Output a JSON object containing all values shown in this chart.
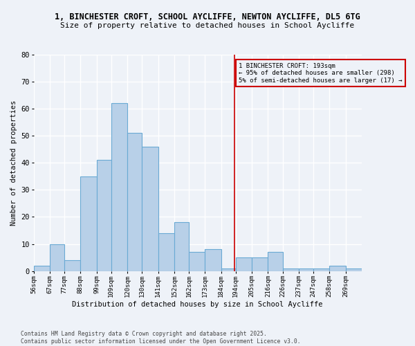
{
  "title_line1": "1, BINCHESTER CROFT, SCHOOL AYCLIFFE, NEWTON AYCLIFFE, DL5 6TG",
  "title_line2": "Size of property relative to detached houses in School Aycliffe",
  "xlabel": "Distribution of detached houses by size in School Aycliffe",
  "ylabel": "Number of detached properties",
  "bin_labels": [
    "56sqm",
    "67sqm",
    "77sqm",
    "88sqm",
    "99sqm",
    "109sqm",
    "120sqm",
    "130sqm",
    "141sqm",
    "152sqm",
    "162sqm",
    "173sqm",
    "184sqm",
    "194sqm",
    "205sqm",
    "216sqm",
    "226sqm",
    "237sqm",
    "247sqm",
    "258sqm",
    "269sqm"
  ],
  "bin_edges": [
    56,
    67,
    77,
    88,
    99,
    109,
    120,
    130,
    141,
    152,
    162,
    173,
    184,
    194,
    205,
    216,
    226,
    237,
    247,
    258,
    269
  ],
  "bar_heights": [
    2,
    10,
    4,
    35,
    41,
    62,
    51,
    46,
    14,
    18,
    7,
    8,
    1,
    5,
    5,
    7,
    1,
    1,
    1,
    2,
    1
  ],
  "bar_color": "#b8d0e8",
  "bar_edge_color": "#6aaad4",
  "vline_x": 193,
  "vline_color": "#cc0000",
  "annotation_text": "1 BINCHESTER CROFT: 193sqm\n← 95% of detached houses are smaller (298)\n5% of semi-detached houses are larger (17) →",
  "ylim": [
    0,
    80
  ],
  "yticks": [
    0,
    10,
    20,
    30,
    40,
    50,
    60,
    70,
    80
  ],
  "footer_text": "Contains HM Land Registry data © Crown copyright and database right 2025.\nContains public sector information licensed under the Open Government Licence v3.0.",
  "bg_color": "#eef2f8",
  "grid_color": "#ffffff"
}
